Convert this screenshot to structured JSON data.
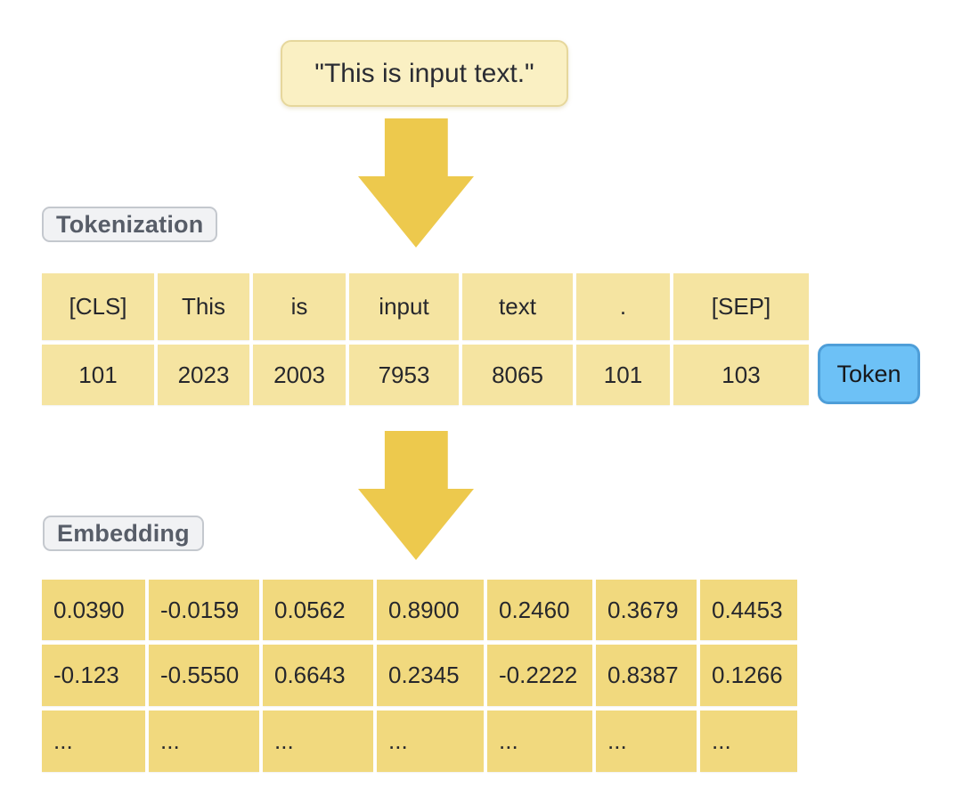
{
  "input_box": {
    "text": "\"This is input text.\""
  },
  "labels": {
    "tokenization": "Tokenization",
    "embedding": "Embedding"
  },
  "token_badge": {
    "label": "Token"
  },
  "icons": {
    "flow_arrow": "down-arrow"
  },
  "tokenization_table": {
    "rows": [
      [
        "[CLS]",
        "This",
        "is",
        "input",
        "text",
        ".",
        "[SEP]"
      ],
      [
        "101",
        "2023",
        "2003",
        "7953",
        "8065",
        "101",
        "103"
      ]
    ]
  },
  "embedding_table": {
    "rows": [
      [
        "0.0390",
        "-0.0159",
        "0.0562",
        "0.8900",
        "0.2460",
        "0.3679",
        "0.4453"
      ],
      [
        "-0.123",
        "-0.5550",
        "0.6643",
        "0.2345",
        "-0.2222",
        "0.8387",
        "0.1266"
      ],
      [
        "...",
        "...",
        "...",
        "...",
        "...",
        "...",
        "..."
      ]
    ]
  },
  "colors": {
    "arrow": "#EDC94D",
    "input_box_bg": "#FAF0C3",
    "input_box_border": "#E6D79C",
    "tokenization_cell_bg": "#F5E4A1",
    "embedding_cell_bg": "#F1D97E",
    "stage_label_bg": "#F1F2F4",
    "stage_label_border": "#C4C8CE",
    "token_badge_bg": "#6DC1F6",
    "token_badge_border": "#4E9ED8",
    "cell_text": "#26272C"
  }
}
